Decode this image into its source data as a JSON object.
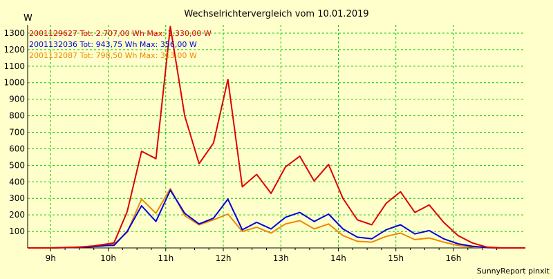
{
  "chart_data": {
    "type": "line",
    "title": "Wechselrichtervergleich vom 10.01.2019",
    "ylabel": "W",
    "footer": "SunnyReport pinxit",
    "ylim": [
      0,
      1350
    ],
    "xlim": [
      8.6,
      17.25
    ],
    "yticks": [
      100,
      200,
      300,
      400,
      500,
      600,
      700,
      800,
      900,
      1000,
      1100,
      1200,
      1300
    ],
    "xticks": [
      {
        "value": 9,
        "label": "9h"
      },
      {
        "value": 10,
        "label": "10h"
      },
      {
        "value": 11,
        "label": "11h"
      },
      {
        "value": 12,
        "label": "12h"
      },
      {
        "value": 13,
        "label": "13h"
      },
      {
        "value": 14,
        "label": "14h"
      },
      {
        "value": 15,
        "label": "15h"
      },
      {
        "value": 16,
        "label": "16h"
      }
    ],
    "grid": true,
    "legend_position": "top-left",
    "x": [
      8.6,
      9.0,
      9.5,
      9.75,
      10.0,
      10.1,
      10.33,
      10.58,
      10.83,
      11.08,
      11.33,
      11.58,
      11.83,
      12.08,
      12.33,
      12.58,
      12.83,
      13.08,
      13.33,
      13.58,
      13.83,
      14.08,
      14.33,
      14.58,
      14.83,
      15.08,
      15.33,
      15.58,
      15.83,
      16.08,
      16.33,
      16.58,
      16.83,
      17.25
    ],
    "series": [
      {
        "name": "2001129627",
        "legend": "2001129627 Tot: 2.707,00 Wh Max: 1.330,00 W",
        "color": "#dd0000",
        "values": [
          0,
          0,
          5,
          12,
          25,
          30,
          220,
          585,
          540,
          1340,
          800,
          510,
          635,
          1020,
          370,
          445,
          330,
          490,
          555,
          405,
          505,
          300,
          170,
          140,
          270,
          340,
          215,
          260,
          155,
          75,
          30,
          5,
          0,
          0
        ]
      },
      {
        "name": "2001132036",
        "legend": "2001132036 Tot: 943,75 Wh Max: 356,00 W",
        "color": "#0000dd",
        "values": [
          0,
          0,
          3,
          8,
          15,
          15,
          100,
          255,
          160,
          350,
          210,
          145,
          180,
          295,
          110,
          155,
          115,
          185,
          215,
          160,
          205,
          115,
          65,
          55,
          110,
          140,
          85,
          105,
          55,
          25,
          10,
          2,
          0,
          0
        ]
      },
      {
        "name": "2001132087",
        "legend": "2001132087 Tot: 798,50 Wh Max: 363,00 W",
        "color": "#ee8800",
        "values": [
          0,
          0,
          5,
          10,
          20,
          22,
          95,
          295,
          210,
          360,
          195,
          140,
          170,
          205,
          100,
          125,
          90,
          145,
          165,
          115,
          145,
          75,
          40,
          35,
          70,
          90,
          50,
          60,
          35,
          15,
          5,
          2,
          0,
          0
        ]
      }
    ]
  }
}
